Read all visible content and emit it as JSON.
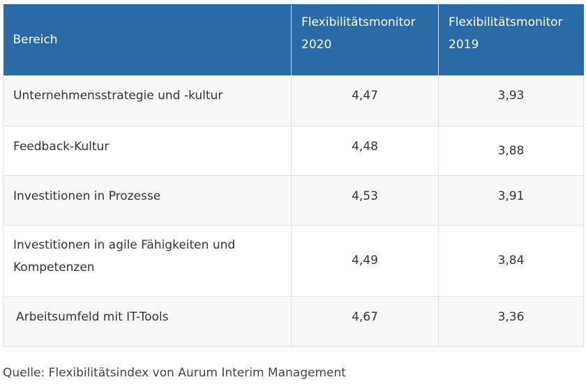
{
  "table": {
    "headers": {
      "area": "Bereich",
      "col_2020": [
        "Flexibilitätsmonitor",
        "2020"
      ],
      "col_2019": [
        "Flexibilitätsmonitor",
        "2019"
      ]
    },
    "rows": [
      {
        "area": "Unternehmensstrategie und -kultur",
        "v2020": "4,47",
        "v2019": "3,93"
      },
      {
        "area": "Feedback-Kultur",
        "v2020": "4,48",
        "v2019": "3,88"
      },
      {
        "area": "Investitionen in Prozesse",
        "v2020": "4,53",
        "v2019": "3,91"
      },
      {
        "area": "Investitionen in agile Fähigkeiten und Kompetenzen",
        "v2020": "4,49",
        "v2019": "3,84"
      },
      {
        "area": "Arbeitsumfeld mit IT-Tools",
        "v2020": "4,67",
        "v2019": "3,36"
      }
    ]
  },
  "source": "Quelle: Flexibilitätsindex von Aurum Interim Management",
  "colors": {
    "header_background": "#2a6aa6",
    "header_text": "#ffffff",
    "striped_row": "#f8f8f8",
    "body_text": "#333333"
  }
}
